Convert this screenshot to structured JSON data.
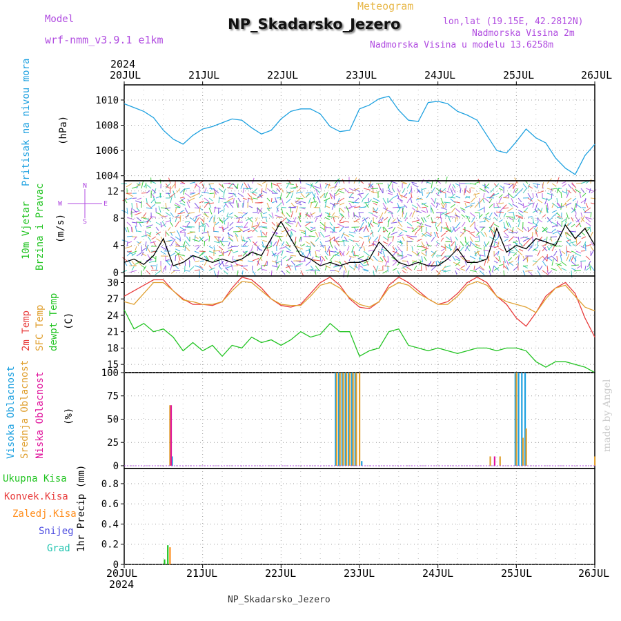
{
  "header": {
    "model_label": "Model",
    "model_name": "wrf-nmm_v3.9.1 e1km",
    "meteogram_label": "Meteogram",
    "station_title": "NP_Skadarsko_Jezero",
    "lonlat": "lon,lat (19.15E, 42.2812N)",
    "elevation": "Nadmorska Visina 2m",
    "model_elevation": "Nadmorska Visina u modelu 13.6258m",
    "footer_station": "NP_Skadarsko_Jezero",
    "credit": "made by Angel"
  },
  "time_axis": {
    "year": "2024",
    "labels": [
      "20JUL",
      "21JUL",
      "22JUL",
      "23JUL",
      "24JUL",
      "25JUL",
      "26JUL"
    ]
  },
  "colors": {
    "pressure": "#1ea1e0",
    "temp2m": "#e83a3a",
    "sfc_temp": "#e0a030",
    "dewpoint": "#22c422",
    "wind_speed": "#000000",
    "high_cloud": "#1ea1e0",
    "mid_cloud": "#e0a030",
    "low_cloud": "#e0149c",
    "total_precip": "#22c422",
    "conv_precip": "#e83a3a",
    "frozen_precip": "#ff8c1a",
    "snow": "#4b4be0",
    "graupel": "#22c4b0"
  },
  "panel_labels": {
    "pressure": {
      "name": "Pritisak na nivou mora",
      "unit": "(hPa)"
    },
    "wind": {
      "name1": "10m Vjetar",
      "name2": "Brzina i Pravac",
      "unit": "(m/s)",
      "compass_n": "N",
      "compass_s": "S",
      "compass_w": "W",
      "compass_e": "E"
    },
    "temp": {
      "t2m": "2m Temp",
      "sfc": "SFC Temp",
      "dew": "dewpt Temp",
      "unit": "(C)"
    },
    "cloud": {
      "high": "Visoka Oblacnost",
      "mid": "Srednja Oblacnost",
      "low": "Niska Oblacnost",
      "unit": "(%)"
    },
    "precip": {
      "total": "Ukupna Kisa",
      "conv": "Konvek.Kisa",
      "frozen": "Zaledj.Kisa",
      "snow": "Snijeg",
      "graupel": "Grad",
      "unit": "1hr Precip (mm)"
    }
  },
  "chart_data": [
    {
      "type": "line",
      "panel": "pressure",
      "ylabel": "Pritisak na nivou mora (hPa)",
      "ylim": [
        1003.6,
        1011.2
      ],
      "yticks": [
        1004,
        1006,
        1008,
        1010
      ],
      "grid": true,
      "series": [
        {
          "name": "Pritisak na nivou mora",
          "x": [
            "2024-07-20 00:00",
            "2024-07-20 03:00",
            "2024-07-20 06:00",
            "2024-07-20 09:00",
            "2024-07-20 12:00",
            "2024-07-20 15:00",
            "2024-07-20 18:00",
            "2024-07-20 21:00",
            "2024-07-21 00:00",
            "2024-07-21 03:00",
            "2024-07-21 06:00",
            "2024-07-21 09:00",
            "2024-07-21 12:00",
            "2024-07-21 15:00",
            "2024-07-21 18:00",
            "2024-07-21 21:00",
            "2024-07-22 00:00",
            "2024-07-22 03:00",
            "2024-07-22 06:00",
            "2024-07-22 09:00",
            "2024-07-22 12:00",
            "2024-07-22 15:00",
            "2024-07-22 18:00",
            "2024-07-22 21:00",
            "2024-07-23 00:00",
            "2024-07-23 03:00",
            "2024-07-23 06:00",
            "2024-07-23 09:00",
            "2024-07-23 12:00",
            "2024-07-23 15:00",
            "2024-07-23 18:00",
            "2024-07-23 21:00",
            "2024-07-24 00:00",
            "2024-07-24 03:00",
            "2024-07-24 06:00",
            "2024-07-24 09:00",
            "2024-07-24 12:00",
            "2024-07-24 15:00",
            "2024-07-24 18:00",
            "2024-07-24 21:00",
            "2024-07-25 00:00",
            "2024-07-25 03:00",
            "2024-07-25 06:00",
            "2024-07-25 09:00",
            "2024-07-25 12:00",
            "2024-07-25 15:00",
            "2024-07-25 18:00",
            "2024-07-25 21:00",
            "2024-07-26 00:00"
          ],
          "values": [
            1009.7,
            1009.4,
            1009.1,
            1008.6,
            1007.6,
            1006.9,
            1006.5,
            1007.2,
            1007.7,
            1007.9,
            1008.2,
            1008.5,
            1008.4,
            1007.8,
            1007.3,
            1007.6,
            1008.5,
            1009.1,
            1009.3,
            1009.3,
            1008.9,
            1007.9,
            1007.5,
            1007.6,
            1009.3,
            1009.6,
            1010.1,
            1010.3,
            1009.2,
            1008.4,
            1008.3,
            1009.8,
            1009.9,
            1009.7,
            1009.1,
            1008.8,
            1008.4,
            1007.2,
            1006.0,
            1005.8,
            1006.7,
            1007.7,
            1007.0,
            1006.6,
            1005.4,
            1004.6,
            1004.1,
            1005.6,
            1006.5
          ]
        }
      ]
    },
    {
      "type": "line",
      "panel": "wind",
      "ylabel": "10m Vjetar Brzina i Pravac (m/s)",
      "ylim": [
        -0.5,
        13.5
      ],
      "yticks": [
        0,
        4,
        8,
        12
      ],
      "grid": true,
      "series": [
        {
          "name": "10m Vjetar",
          "x": [
            "2024-07-20 00:00",
            "2024-07-20 03:00",
            "2024-07-20 06:00",
            "2024-07-20 09:00",
            "2024-07-20 12:00",
            "2024-07-20 15:00",
            "2024-07-20 18:00",
            "2024-07-20 21:00",
            "2024-07-21 00:00",
            "2024-07-21 03:00",
            "2024-07-21 06:00",
            "2024-07-21 09:00",
            "2024-07-21 12:00",
            "2024-07-21 15:00",
            "2024-07-21 18:00",
            "2024-07-21 21:00",
            "2024-07-22 00:00",
            "2024-07-22 03:00",
            "2024-07-22 06:00",
            "2024-07-22 09:00",
            "2024-07-22 12:00",
            "2024-07-22 15:00",
            "2024-07-22 18:00",
            "2024-07-22 21:00",
            "2024-07-23 00:00",
            "2024-07-23 03:00",
            "2024-07-23 06:00",
            "2024-07-23 09:00",
            "2024-07-23 12:00",
            "2024-07-23 15:00",
            "2024-07-23 18:00",
            "2024-07-23 21:00",
            "2024-07-24 00:00",
            "2024-07-24 03:00",
            "2024-07-24 06:00",
            "2024-07-24 09:00",
            "2024-07-24 12:00",
            "2024-07-24 15:00",
            "2024-07-24 18:00",
            "2024-07-24 21:00",
            "2024-07-25 00:00",
            "2024-07-25 03:00",
            "2024-07-25 06:00",
            "2024-07-25 09:00",
            "2024-07-25 12:00",
            "2024-07-25 15:00",
            "2024-07-25 18:00",
            "2024-07-25 21:00",
            "2024-07-26 00:00"
          ],
          "values": [
            1.5,
            2.0,
            1.2,
            2.5,
            5.0,
            1.0,
            1.5,
            2.5,
            2.0,
            1.5,
            2.0,
            1.5,
            2.0,
            3.0,
            2.5,
            5.0,
            7.5,
            5.0,
            2.5,
            2.0,
            1.0,
            1.5,
            1.0,
            1.5,
            1.5,
            2.0,
            4.5,
            3.0,
            1.5,
            1.0,
            1.5,
            1.0,
            1.0,
            2.0,
            3.5,
            1.5,
            1.5,
            2.0,
            6.5,
            3.0,
            4.0,
            3.5,
            5.0,
            4.5,
            4.0,
            7.0,
            5.0,
            6.5,
            4.0
          ]
        }
      ]
    },
    {
      "type": "line",
      "panel": "temperature",
      "ylabel": "(C)",
      "ylim": [
        13.5,
        31.2
      ],
      "yticks": [
        15,
        18,
        21,
        24,
        27,
        30
      ],
      "grid": true,
      "x": [
        "2024-07-20 00:00",
        "2024-07-20 03:00",
        "2024-07-20 06:00",
        "2024-07-20 09:00",
        "2024-07-20 12:00",
        "2024-07-20 15:00",
        "2024-07-20 18:00",
        "2024-07-20 21:00",
        "2024-07-21 00:00",
        "2024-07-21 03:00",
        "2024-07-21 06:00",
        "2024-07-21 09:00",
        "2024-07-21 12:00",
        "2024-07-21 15:00",
        "2024-07-21 18:00",
        "2024-07-21 21:00",
        "2024-07-22 00:00",
        "2024-07-22 03:00",
        "2024-07-22 06:00",
        "2024-07-22 09:00",
        "2024-07-22 12:00",
        "2024-07-22 15:00",
        "2024-07-22 18:00",
        "2024-07-22 21:00",
        "2024-07-23 00:00",
        "2024-07-23 03:00",
        "2024-07-23 06:00",
        "2024-07-23 09:00",
        "2024-07-23 12:00",
        "2024-07-23 15:00",
        "2024-07-23 18:00",
        "2024-07-23 21:00",
        "2024-07-24 00:00",
        "2024-07-24 03:00",
        "2024-07-24 06:00",
        "2024-07-24 09:00",
        "2024-07-24 12:00",
        "2024-07-24 15:00",
        "2024-07-24 18:00",
        "2024-07-24 21:00",
        "2024-07-25 00:00",
        "2024-07-25 03:00",
        "2024-07-25 06:00",
        "2024-07-25 09:00",
        "2024-07-25 12:00",
        "2024-07-25 15:00",
        "2024-07-25 18:00",
        "2024-07-25 21:00",
        "2024-07-26 00:00"
      ],
      "series": [
        {
          "name": "2m Temp",
          "values": [
            27.5,
            28.5,
            29.5,
            30.5,
            30.5,
            28.5,
            27.0,
            26.0,
            26.0,
            25.8,
            26.5,
            29.0,
            31.0,
            30.5,
            29.0,
            27.0,
            25.8,
            25.5,
            26.0,
            28.0,
            30.0,
            31.0,
            29.5,
            27.0,
            25.5,
            25.2,
            26.5,
            29.5,
            31.0,
            30.0,
            28.5,
            27.0,
            26.0,
            26.5,
            28.0,
            30.0,
            31.0,
            30.0,
            27.5,
            26.0,
            23.5,
            22.0,
            24.5,
            27.5,
            29.0,
            30.0,
            28.0,
            23.5,
            20.0
          ]
        },
        {
          "name": "SFC Temp",
          "values": [
            26.5,
            26.0,
            28.0,
            30.0,
            30.0,
            28.5,
            26.8,
            26.5,
            26.0,
            26.0,
            26.5,
            28.5,
            30.2,
            30.0,
            28.5,
            27.0,
            26.0,
            25.8,
            25.8,
            27.5,
            29.5,
            30.0,
            29.0,
            27.2,
            26.0,
            25.5,
            26.5,
            29.0,
            30.0,
            29.5,
            28.0,
            27.0,
            26.0,
            26.0,
            27.5,
            29.5,
            30.2,
            29.5,
            27.5,
            26.5,
            26.0,
            25.5,
            24.5,
            27.0,
            29.0,
            29.5,
            27.5,
            25.5,
            24.8
          ]
        },
        {
          "name": "dewpt Temp",
          "values": [
            25.0,
            21.5,
            22.5,
            21.0,
            21.5,
            20.0,
            17.5,
            19.0,
            17.5,
            18.5,
            16.5,
            18.5,
            18.0,
            20.0,
            19.0,
            19.5,
            18.5,
            19.5,
            21.0,
            20.0,
            20.5,
            22.5,
            21.0,
            21.0,
            16.5,
            17.5,
            18.0,
            21.0,
            21.5,
            18.5,
            18.0,
            17.5,
            18.0,
            17.5,
            17.0,
            17.5,
            18.0,
            18.0,
            17.5,
            18.0,
            18.0,
            17.5,
            15.5,
            14.5,
            15.5,
            15.5,
            15.0,
            14.5,
            13.5
          ]
        }
      ]
    },
    {
      "type": "bar",
      "panel": "cloud",
      "ylabel": "(%)",
      "ylim": [
        -3,
        100
      ],
      "yticks": [
        0,
        25,
        50,
        75,
        100
      ],
      "grid": true,
      "series": [
        {
          "name": "Visoka Oblacnost",
          "bars": [
            {
              "x": "2024-07-20 15:00",
              "value": 10
            },
            {
              "x": "2024-07-22 17:00",
              "value": 100
            },
            {
              "x": "2024-07-22 18:00",
              "value": 100
            },
            {
              "x": "2024-07-22 19:00",
              "value": 100
            },
            {
              "x": "2024-07-22 20:00",
              "value": 100
            },
            {
              "x": "2024-07-22 21:00",
              "value": 100
            },
            {
              "x": "2024-07-22 22:00",
              "value": 100
            },
            {
              "x": "2024-07-22 23:00",
              "value": 100
            },
            {
              "x": "2024-07-23 01:00",
              "value": 5
            },
            {
              "x": "2024-07-25 00:00",
              "value": 100
            },
            {
              "x": "2024-07-25 01:00",
              "value": 100
            },
            {
              "x": "2024-07-25 02:00",
              "value": 100
            },
            {
              "x": "2024-07-25 03:00",
              "value": 100
            }
          ]
        },
        {
          "name": "Srednja Oblacnost",
          "bars": [
            {
              "x": "2024-07-20 14:00",
              "value": 65
            },
            {
              "x": "2024-07-22 17:00",
              "value": 100
            },
            {
              "x": "2024-07-22 18:00",
              "value": 100
            },
            {
              "x": "2024-07-22 19:00",
              "value": 100
            },
            {
              "x": "2024-07-22 20:00",
              "value": 100
            },
            {
              "x": "2024-07-22 21:00",
              "value": 100
            },
            {
              "x": "2024-07-22 22:00",
              "value": 100
            },
            {
              "x": "2024-07-22 23:00",
              "value": 100
            },
            {
              "x": "2024-07-23 00:00",
              "value": 100
            },
            {
              "x": "2024-07-24 16:00",
              "value": 10
            },
            {
              "x": "2024-07-24 19:00",
              "value": 10
            },
            {
              "x": "2024-07-25 00:00",
              "value": 100
            },
            {
              "x": "2024-07-25 02:00",
              "value": 30
            },
            {
              "x": "2024-07-25 03:00",
              "value": 40
            },
            {
              "x": "2024-07-26 00:00",
              "value": 10
            }
          ]
        },
        {
          "name": "Niska Oblacnost",
          "bars": [
            {
              "x": "2024-07-20 14:00",
              "value": 65
            },
            {
              "x": "2024-07-24 17:00",
              "value": 10
            }
          ]
        }
      ]
    },
    {
      "type": "bar",
      "panel": "precip",
      "ylabel": "1hr Precip (mm)",
      "ylim": [
        0,
        0.95
      ],
      "yticks": [
        0,
        0.2,
        0.4,
        0.6,
        0.8
      ],
      "grid": true,
      "series": [
        {
          "name": "Ukupna Kisa",
          "bars": [
            {
              "x": "2024-07-20 13:00",
              "value": 0.05
            },
            {
              "x": "2024-07-20 14:00",
              "value": 0.19
            }
          ]
        },
        {
          "name": "Konvek.Kisa",
          "bars": []
        },
        {
          "name": "Zaledj.Kisa",
          "bars": [
            {
              "x": "2024-07-20 14:00",
              "value": 0.17
            }
          ]
        },
        {
          "name": "Snijeg",
          "bars": []
        },
        {
          "name": "Grad",
          "bars": []
        }
      ]
    }
  ]
}
